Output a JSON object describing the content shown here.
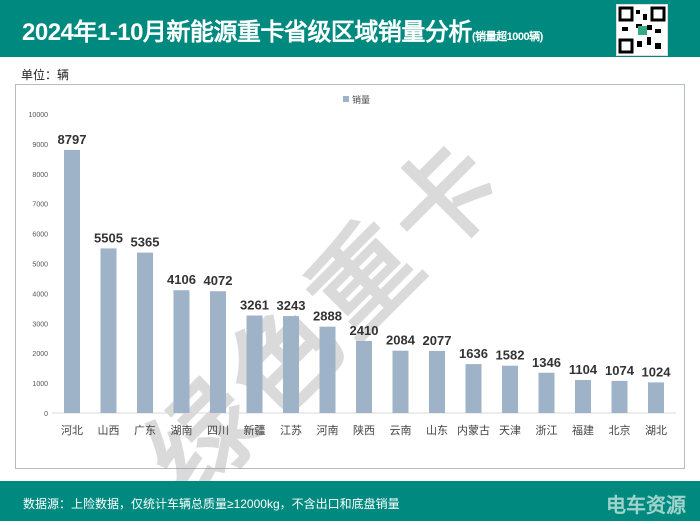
{
  "header": {
    "title": "2024年1-10月新能源重卡省级区域销量分析",
    "subtitle": "(销量超1000辆)"
  },
  "unit": "单位：辆",
  "footer": {
    "source": "数据源：上险数据，仅统计车辆总质量≥12000kg，不含出口和底盘销量",
    "brand": "电车资源"
  },
  "watermark": "绿色重卡",
  "colors": {
    "header": "#008a7f",
    "bar": "#9fb3c8"
  },
  "chart_data": {
    "type": "bar",
    "title": "",
    "xlabel": "",
    "ylabel": "",
    "legend": "top-center",
    "series_name": "销量",
    "categories": [
      "河北",
      "山西",
      "广东",
      "湖南",
      "四川",
      "新疆",
      "江苏",
      "河南",
      "陕西",
      "云南",
      "山东",
      "内蒙古",
      "天津",
      "浙江",
      "福建",
      "北京",
      "湖北"
    ],
    "values": [
      8797,
      5505,
      5365,
      4106,
      4072,
      3261,
      3243,
      2888,
      2410,
      2084,
      2077,
      1636,
      1582,
      1346,
      1104,
      1074,
      1024
    ],
    "ylim": [
      0,
      10000
    ],
    "yticks": [
      "0",
      "1000",
      "2000",
      "3000",
      "4000",
      "5000",
      "6000",
      "7000",
      "8000",
      "9000",
      "10000"
    ]
  }
}
